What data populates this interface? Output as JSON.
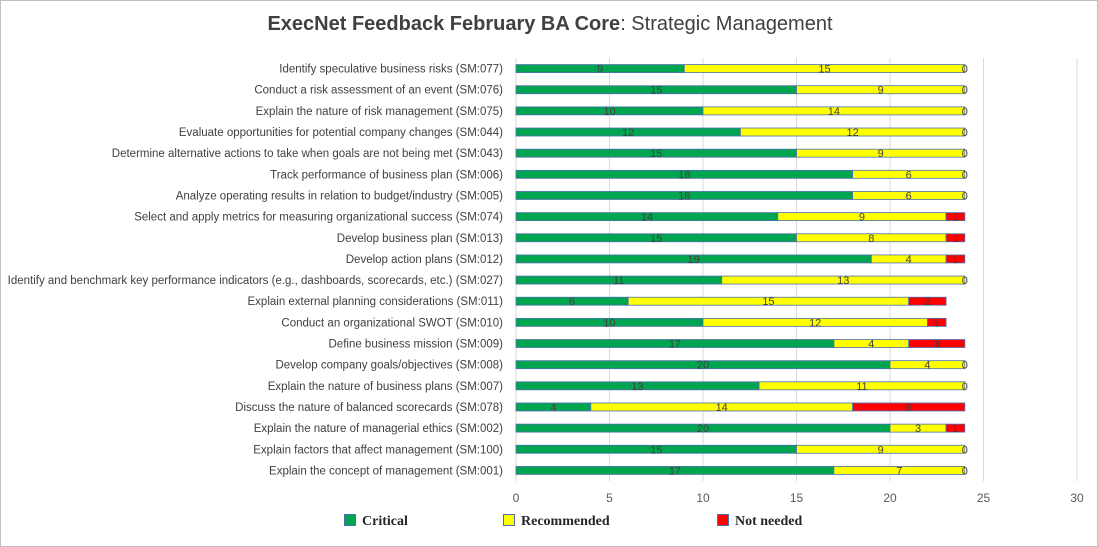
{
  "chart_data": {
    "type": "bar",
    "orientation": "horizontal",
    "stacked": true,
    "title_bold": "ExecNet Feedback February BA Core",
    "title_rest": ": Strategic Management",
    "xlim": [
      0,
      30
    ],
    "xticks": [
      "0",
      "5",
      "10",
      "15",
      "20",
      "25",
      "30"
    ],
    "grid": true,
    "legend_position": "bottom",
    "categories": [
      "Identify speculative business risks (SM:077)",
      "Conduct a risk assessment of an event (SM:076)",
      "Explain the nature of risk management (SM:075)",
      "Evaluate opportunities for potential company changes (SM:044)",
      "Determine alternative actions to take when goals are not being met (SM:043)",
      "Track performance of business plan (SM:006)",
      "Analyze operating results in relation to budget/industry (SM:005)",
      "Select and apply metrics for measuring organizational success (SM:074)",
      "Develop business plan (SM:013)",
      "Develop action plans (SM:012)",
      "Identify and benchmark key performance indicators (e.g., dashboards, scorecards, etc.) (SM:027)",
      "Explain external planning considerations (SM:011)",
      "Conduct an organizational SWOT (SM:010)",
      "Define business mission (SM:009)",
      "Develop company goals/objectives (SM:008)",
      "Explain the nature of business plans (SM:007)",
      "Discuss the nature of balanced scorecards (SM:078)",
      "Explain the nature of managerial ethics (SM:002)",
      "Explain factors that affect management (SM:100)",
      "Explain the concept of management (SM:001)"
    ],
    "series": [
      {
        "name": "Critical",
        "color": "#00a550",
        "values": [
          9,
          15,
          10,
          12,
          15,
          18,
          18,
          14,
          15,
          19,
          11,
          6,
          10,
          17,
          20,
          13,
          4,
          20,
          15,
          17
        ]
      },
      {
        "name": "Recommended",
        "color": "#ffff00",
        "values": [
          15,
          9,
          14,
          12,
          9,
          6,
          6,
          9,
          8,
          4,
          13,
          15,
          12,
          4,
          4,
          11,
          14,
          3,
          9,
          7
        ]
      },
      {
        "name": "Not needed",
        "color": "#ff0000",
        "values": [
          0,
          0,
          0,
          0,
          0,
          0,
          0,
          1,
          1,
          1,
          0,
          2,
          1,
          3,
          0,
          0,
          6,
          1,
          0,
          0
        ]
      }
    ]
  }
}
